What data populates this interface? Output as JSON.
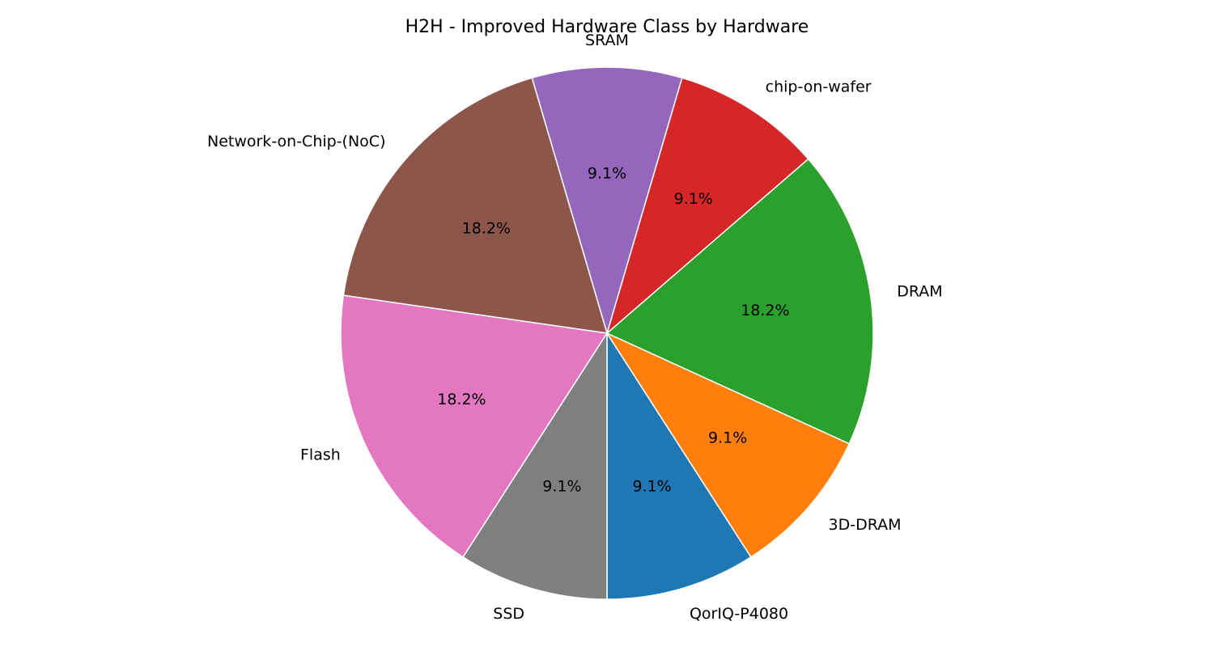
{
  "chart_data": {
    "type": "pie",
    "title": "H2H - Improved Hardware Class by Hardware",
    "start_angle_deg": 270,
    "direction": "counterclockwise",
    "slices": [
      {
        "label": "QorIQ-P4080",
        "value": 1,
        "pct_label": "9.1%",
        "color": "#1f77b4"
      },
      {
        "label": "3D-DRAM",
        "value": 1,
        "pct_label": "9.1%",
        "color": "#ff7f0e"
      },
      {
        "label": "DRAM",
        "value": 2,
        "pct_label": "18.2%",
        "color": "#2ca02c"
      },
      {
        "label": "chip-on-wafer",
        "value": 1,
        "pct_label": "9.1%",
        "color": "#d62728"
      },
      {
        "label": "SRAM",
        "value": 1,
        "pct_label": "9.1%",
        "color": "#9467bd"
      },
      {
        "label": "Network-on-Chip-(NoC)",
        "value": 2,
        "pct_label": "18.2%",
        "color": "#8c564b"
      },
      {
        "label": "Flash",
        "value": 2,
        "pct_label": "18.2%",
        "color": "#e377c2"
      },
      {
        "label": "SSD",
        "value": 1,
        "pct_label": "9.1%",
        "color": "#7f7f7f"
      }
    ]
  }
}
